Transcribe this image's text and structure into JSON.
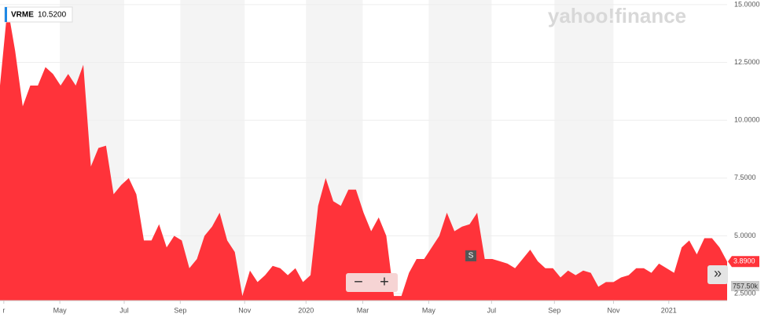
{
  "chart_data": {
    "type": "area",
    "brand": "yahoo!finance",
    "symbol": "VRME",
    "symbol_value": "10.5200",
    "last_price_label": "3.8900",
    "volume_label": "757.50k",
    "event_marker": "S",
    "zoom_out": "−",
    "zoom_in": "+",
    "scroll_button": "»",
    "color": "#ff333a",
    "x": [
      0,
      1,
      2,
      3,
      4,
      5,
      6,
      7,
      8,
      9,
      10,
      11,
      12,
      13,
      14,
      15,
      16,
      17,
      18,
      19,
      20,
      21,
      22,
      23,
      24,
      25,
      26,
      27,
      28,
      29,
      30,
      31,
      32,
      33,
      34,
      35,
      36,
      37,
      38,
      39,
      40,
      41,
      42,
      43,
      44,
      45,
      46,
      47,
      48,
      49,
      50,
      51,
      52,
      53,
      54,
      55,
      56,
      57,
      58,
      59,
      60,
      61,
      62,
      63,
      64,
      65,
      66,
      67,
      68,
      69,
      70,
      71,
      72,
      73,
      74,
      75,
      76,
      77,
      78,
      79,
      80,
      81,
      82,
      83,
      84,
      85,
      86,
      87,
      88,
      89,
      90,
      91,
      92,
      93,
      94,
      95,
      96
    ],
    "values": [
      11.5,
      14.9,
      13.0,
      10.6,
      11.5,
      11.5,
      12.3,
      12.0,
      11.5,
      12.0,
      11.5,
      12.4,
      8.0,
      8.8,
      8.9,
      6.8,
      7.2,
      7.5,
      6.8,
      4.8,
      4.8,
      5.5,
      4.5,
      5.0,
      4.8,
      3.6,
      4.0,
      5.0,
      5.4,
      6.0,
      4.8,
      4.3,
      2.4,
      3.5,
      3.0,
      3.3,
      3.7,
      3.6,
      3.3,
      3.6,
      3.0,
      3.3,
      6.3,
      7.5,
      6.5,
      6.3,
      7.0,
      7.0,
      6.0,
      5.2,
      5.8,
      5.0,
      2.4,
      2.4,
      3.4,
      4.0,
      4.0,
      4.5,
      5.0,
      6.0,
      5.2,
      5.4,
      5.5,
      6.0,
      4.0,
      4.0,
      3.9,
      3.8,
      3.6,
      4.0,
      4.4,
      3.9,
      3.6,
      3.6,
      3.2,
      3.5,
      3.3,
      3.5,
      3.4,
      2.8,
      3.0,
      3.0,
      3.2,
      3.3,
      3.6,
      3.6,
      3.4,
      3.8,
      3.6,
      3.4,
      4.5,
      4.8,
      4.2,
      4.9,
      4.9,
      4.5,
      3.89
    ],
    "xlim": [
      0,
      96
    ],
    "xticks": [
      {
        "value": 0.5,
        "label": "r"
      },
      {
        "value": 7.9,
        "label": "May"
      },
      {
        "value": 16.4,
        "label": "Jul"
      },
      {
        "value": 23.8,
        "label": "Sep"
      },
      {
        "value": 32.3,
        "label": "Nov"
      },
      {
        "value": 40.4,
        "label": "2020"
      },
      {
        "value": 47.9,
        "label": "Mar"
      },
      {
        "value": 56.6,
        "label": "May"
      },
      {
        "value": 64.9,
        "label": "Jul"
      },
      {
        "value": 73.2,
        "label": "Sep"
      },
      {
        "value": 81,
        "label": "Nov"
      },
      {
        "value": 88.3,
        "label": "2021"
      }
    ],
    "ylim": [
      2.2,
      15.2
    ],
    "yticks": [
      {
        "value": 2.5,
        "label": "2.5000"
      },
      {
        "value": 5,
        "label": "5.0000"
      },
      {
        "value": 7.5,
        "label": "7.5000"
      },
      {
        "value": 10,
        "label": "10.0000"
      },
      {
        "value": 12.5,
        "label": "12.5000"
      },
      {
        "value": 15,
        "label": "15.0000"
      }
    ],
    "grid": true
  }
}
